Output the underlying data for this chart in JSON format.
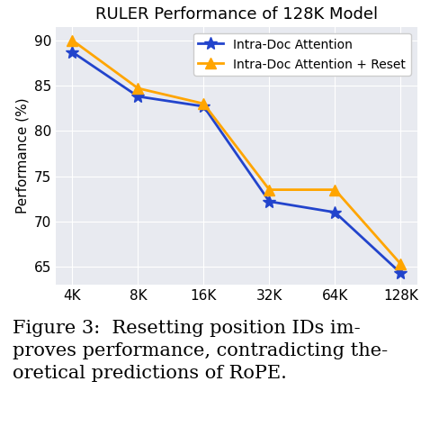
{
  "title": "RULER Performance of 128K Model",
  "ylabel": "Performance (%)",
  "x_labels": [
    "4K",
    "8K",
    "16K",
    "32K",
    "64K",
    "128K"
  ],
  "x_values": [
    0,
    1,
    2,
    3,
    4,
    5
  ],
  "series": [
    {
      "label": "Intra-Doc Attention",
      "color": "#2244cc",
      "marker": "*",
      "markersize": 10,
      "values": [
        88.7,
        83.8,
        82.7,
        72.2,
        71.0,
        64.3
      ]
    },
    {
      "label": "Intra-Doc Attention + Reset",
      "color": "#ffa500",
      "marker": "^",
      "markersize": 8,
      "values": [
        90.0,
        84.7,
        83.0,
        73.5,
        73.5,
        65.3
      ]
    }
  ],
  "ylim": [
    63,
    91.5
  ],
  "yticks": [
    65,
    70,
    75,
    80,
    85,
    90
  ],
  "background_color": "#e8eaf0",
  "grid_color": "#ffffff",
  "linewidth": 2.0,
  "caption_line1": "Figure 3:  Resetting position IDs im-",
  "caption_line2": "proves performance, contradicting the-",
  "caption_line3": "oretical predictions of RoPE."
}
